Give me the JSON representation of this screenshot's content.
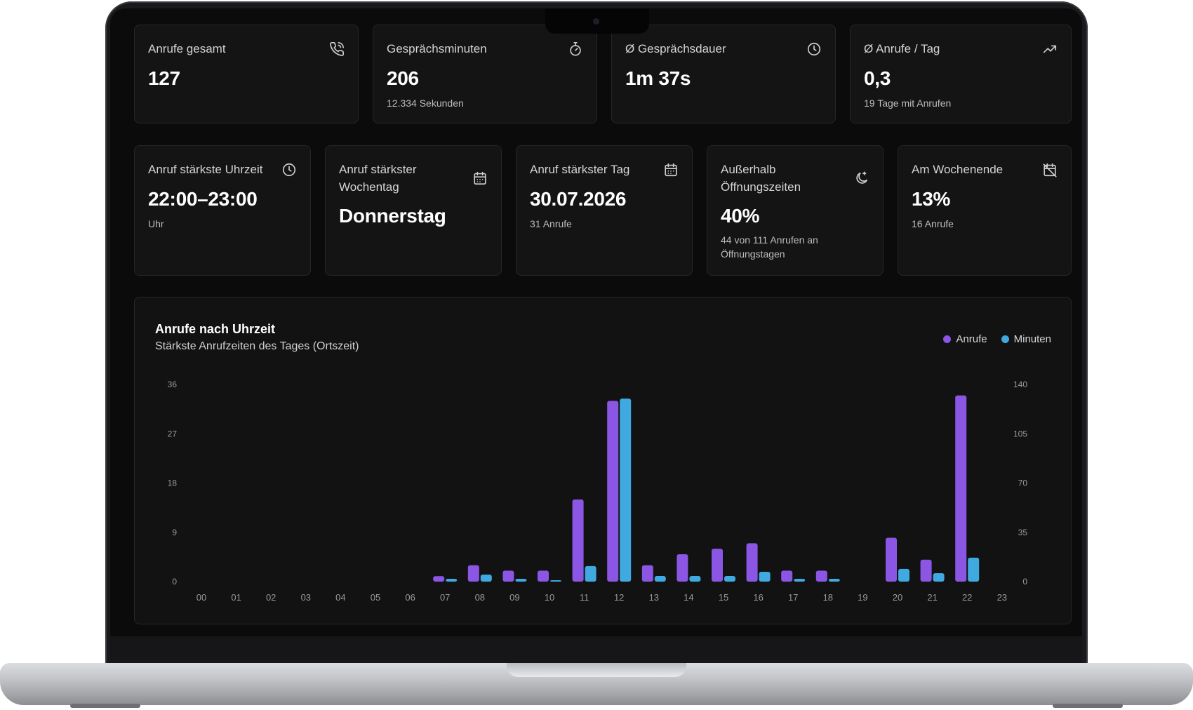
{
  "colors": {
    "anrufe": "#8b56e3",
    "minuten": "#3fa9e0",
    "background": "#0b0b0c"
  },
  "kpi_row1": [
    {
      "label": "Anrufe gesamt",
      "value": "127",
      "sub": "",
      "icon": "phone-icon"
    },
    {
      "label": "Gesprächsminuten",
      "value": "206",
      "sub": "12.334 Sekunden",
      "icon": "stopwatch-icon"
    },
    {
      "label": "Ø Gesprächsdauer",
      "value": "1m 37s",
      "sub": "",
      "icon": "clock-icon"
    },
    {
      "label": "Ø Anrufe / Tag",
      "value": "0,3",
      "sub": "19 Tage mit Anrufen",
      "icon": "trending-up-icon"
    }
  ],
  "kpi_row2": [
    {
      "label": "Anruf stärkste Uhrzeit",
      "value": "22:00–23:00",
      "sub": "Uhr",
      "icon": "clock-icon"
    },
    {
      "label_line1": "Anruf stärkster",
      "label_line2": "Wochentag",
      "value": "Donnerstag",
      "sub": "",
      "icon": "calendar-icon"
    },
    {
      "label": "Anruf stärkster Tag",
      "value": "30.07.2026",
      "sub": "31 Anrufe",
      "icon": "calendar-icon"
    },
    {
      "label_line1": "Außerhalb",
      "label_line2": "Öffnungszeiten",
      "value": "40%",
      "sub_line1": "44 von 111 Anrufen an",
      "sub_line2": "Öffnungstagen",
      "icon": "moon-clock-icon"
    },
    {
      "label": "Am Wochenende",
      "value": "13%",
      "sub": "16 Anrufe",
      "icon": "calendar-off-icon"
    }
  ],
  "chart": {
    "title": "Anrufe nach Uhrzeit",
    "subtitle": "Stärkste Anrufzeiten des Tages (Ortszeit)",
    "legend": [
      "Anrufe",
      "Minuten"
    ]
  },
  "chart_data": {
    "type": "bar",
    "categories": [
      "00",
      "01",
      "02",
      "03",
      "04",
      "05",
      "06",
      "07",
      "08",
      "09",
      "10",
      "11",
      "12",
      "13",
      "14",
      "15",
      "16",
      "17",
      "18",
      "19",
      "20",
      "21",
      "22",
      "23"
    ],
    "series": [
      {
        "name": "Anrufe",
        "axis": "left",
        "values": [
          0,
          0,
          0,
          0,
          0,
          0,
          0,
          1,
          3,
          2,
          2,
          15,
          33,
          3,
          5,
          6,
          7,
          2,
          2,
          0,
          8,
          4,
          34,
          0
        ]
      },
      {
        "name": "Minuten",
        "axis": "right",
        "values": [
          0,
          0,
          0,
          0,
          0,
          0,
          0,
          2,
          5,
          2,
          1,
          11,
          130,
          4,
          4,
          4,
          7,
          2,
          2,
          0,
          9,
          6,
          17,
          0
        ]
      }
    ],
    "y_left": {
      "ticks": [
        "0",
        "9",
        "18",
        "27",
        "36"
      ],
      "range": [
        0,
        36
      ]
    },
    "y_right": {
      "ticks": [
        "0",
        "35",
        "70",
        "105",
        "140"
      ],
      "range": [
        0,
        140
      ]
    },
    "legend_position": "top-right",
    "grid": false
  }
}
